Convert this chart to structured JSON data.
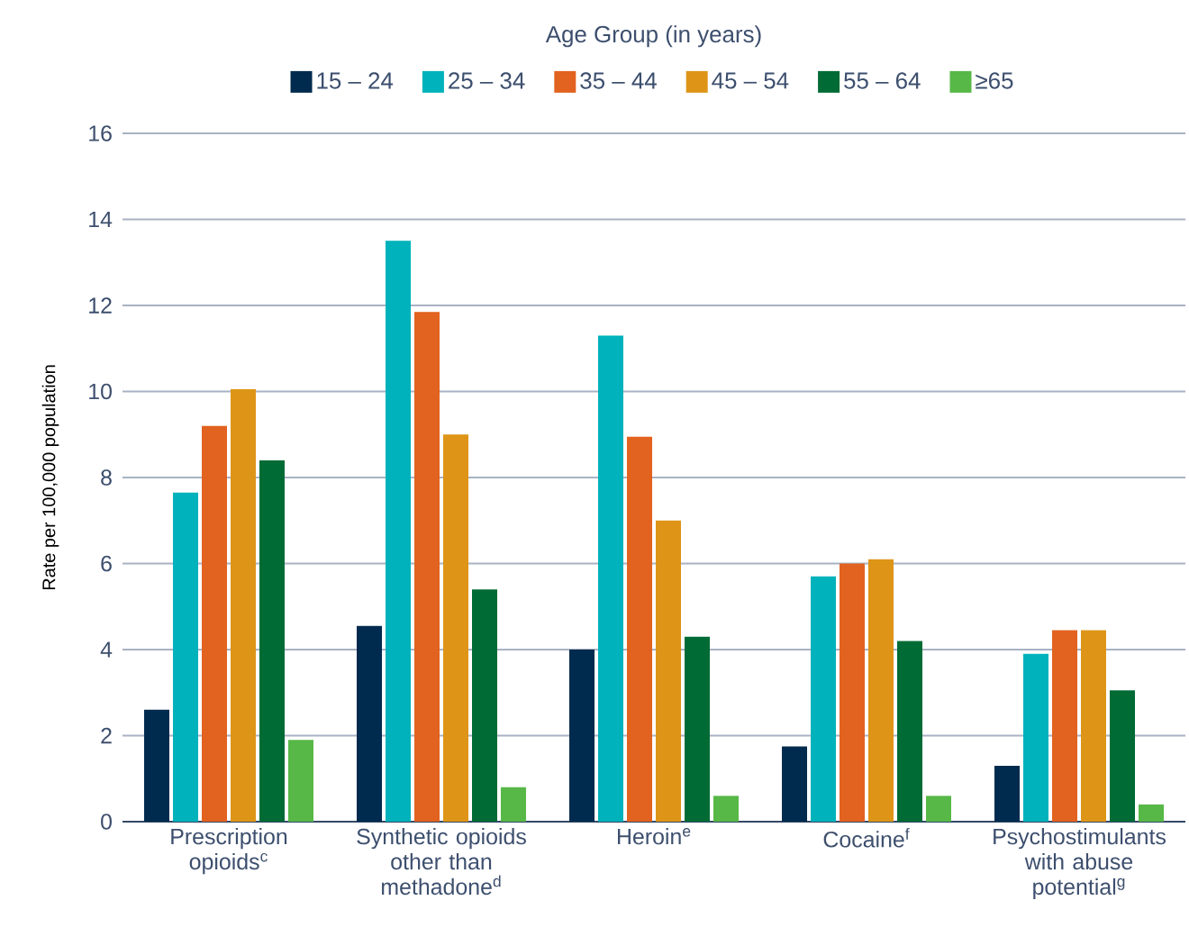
{
  "chart_data": {
    "type": "bar",
    "ylabel": "Rate per 100,000 population",
    "legend_title": "Age Group (in years)",
    "categories": [
      "Prescription opioids$^{c}$",
      "Synthetic opioids other than methadone$^{d}$",
      "Heroin$^{e}$",
      "Cocaine$^{f}$",
      "Psychostimulants with abuse potential$^{g}$"
    ],
    "series": [
      {
        "name": "15 – 24",
        "color": "#002b4e",
        "values": [
          2.6,
          4.55,
          4.0,
          1.75,
          1.3
        ]
      },
      {
        "name": "25 – 34",
        "color": "#00b2bb",
        "values": [
          7.65,
          13.5,
          11.3,
          5.7,
          3.9
        ]
      },
      {
        "name": "35 – 44",
        "color": "#e2621f",
        "values": [
          9.2,
          11.85,
          8.95,
          6.0,
          4.45
        ]
      },
      {
        "name": "45 – 54",
        "color": "#de9517",
        "values": [
          10.05,
          9.0,
          7.0,
          6.1,
          4.45
        ]
      },
      {
        "name": "55 – 64",
        "color": "#006b35",
        "values": [
          8.4,
          5.4,
          4.3,
          4.2,
          3.05
        ]
      },
      {
        "name": "≥65",
        "color": "#57b847",
        "values": [
          1.9,
          0.8,
          0.6,
          0.6,
          0.4
        ]
      }
    ],
    "ylim": [
      0,
      16
    ],
    "yticks": [
      0,
      2,
      4,
      6,
      8,
      10,
      12,
      14,
      16
    ],
    "grid": "y",
    "legend": "top"
  }
}
